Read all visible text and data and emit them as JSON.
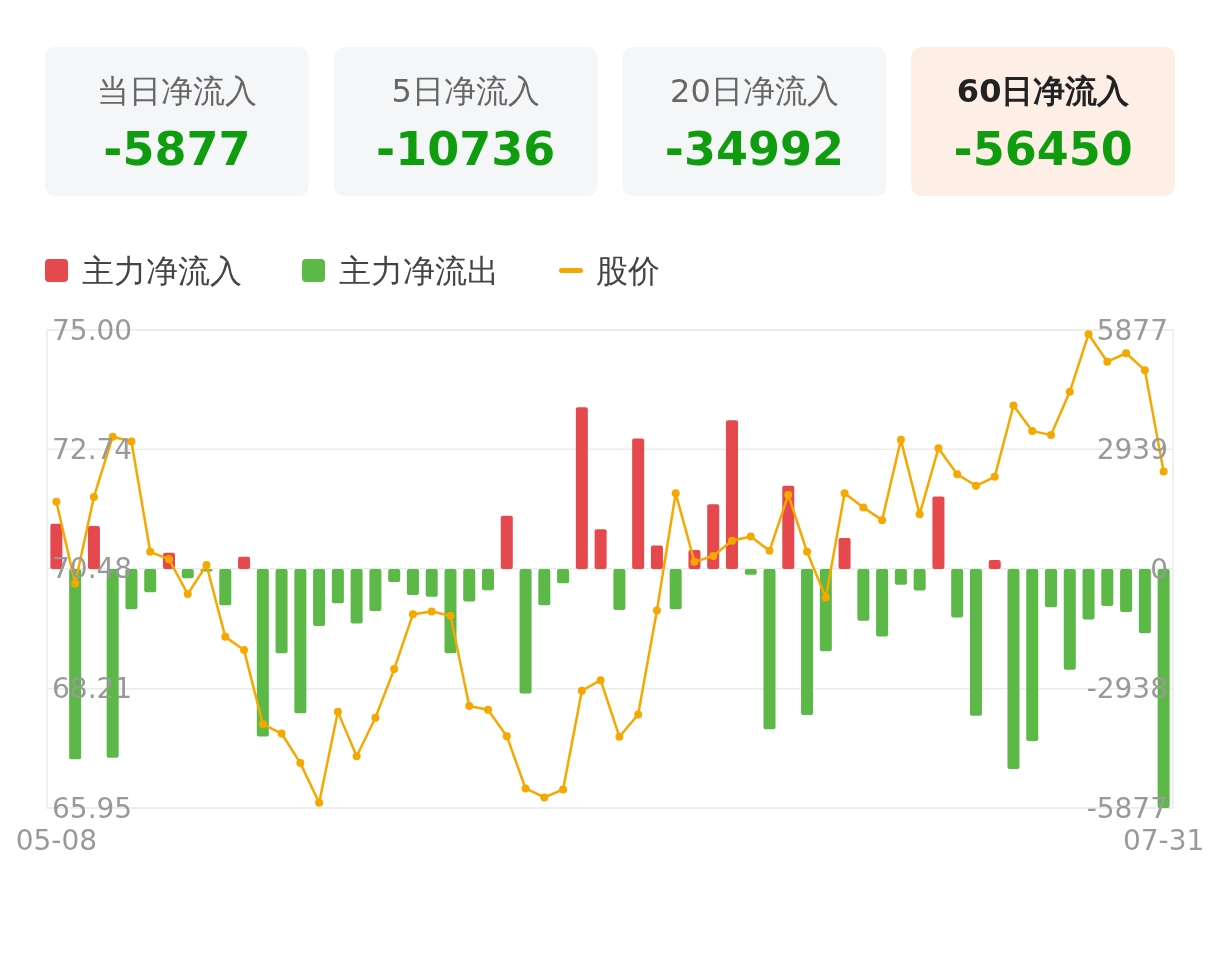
{
  "chart_data": [
    {
      "type": "other",
      "categories": [
        "当日净流入",
        "5日净流入",
        "20日净流入",
        "60日净流入"
      ],
      "values": [
        -5877,
        -10736,
        -34992,
        -56450
      ],
      "colors": [
        "#f5f6f8",
        "#f5f6f8",
        "#f5f6f8",
        "#fdeee6"
      ],
      "data_labels": true
    },
    {
      "type": "bar",
      "legend": "top",
      "grid": "y",
      "marker": "circle",
      "categories": [
        "05-08",
        null,
        null,
        null,
        null,
        null,
        null,
        null,
        null,
        null,
        null,
        null,
        null,
        null,
        null,
        null,
        null,
        null,
        null,
        null,
        null,
        null,
        null,
        null,
        null,
        null,
        null,
        null,
        null,
        null,
        null,
        null,
        null,
        null,
        null,
        null,
        null,
        null,
        null,
        null,
        null,
        null,
        null,
        null,
        null,
        null,
        null,
        null,
        null,
        null,
        null,
        null,
        null,
        null,
        null,
        null,
        null,
        null,
        null,
        "07-31"
      ],
      "ylim": [
        65.95,
        75
      ],
      "yticks": [
        {
          "value": 75,
          "label": "75.00"
        },
        72.74,
        70.48,
        68.21,
        65.95
      ],
      "y2lim": [
        -5877,
        5877
      ],
      "y2ticks": [
        5877,
        2939,
        0,
        -2938,
        -5877
      ],
      "series": [
        {
          "name": "主力净流入",
          "type": "bar",
          "axis": "y2",
          "color": "#e5484d",
          "values": [
            1110,
            null,
            1060,
            null,
            null,
            null,
            400,
            null,
            null,
            null,
            300,
            null,
            null,
            null,
            null,
            null,
            null,
            null,
            null,
            null,
            null,
            null,
            null,
            null,
            1310,
            null,
            null,
            null,
            3980,
            980,
            null,
            3210,
            580,
            null,
            470,
            1590,
            3660,
            null,
            null,
            2050,
            null,
            null,
            760,
            null,
            null,
            null,
            null,
            1780,
            null,
            null,
            220,
            null,
            null,
            null,
            null,
            null,
            null,
            null,
            null,
            null
          ]
        },
        {
          "name": "主力净流出",
          "type": "bar",
          "axis": "y2",
          "color": "#5cb947",
          "values": [
            null,
            -4680,
            null,
            -4640,
            -990,
            -570,
            null,
            -230,
            -60,
            -890,
            null,
            -4120,
            -2070,
            -3550,
            -1400,
            -840,
            -1340,
            -1030,
            -320,
            -640,
            -680,
            -2070,
            -800,
            -520,
            null,
            -3060,
            -890,
            -350,
            null,
            null,
            -1010,
            null,
            null,
            -990,
            null,
            null,
            null,
            -140,
            -3940,
            null,
            -3590,
            -2020,
            null,
            -1270,
            -1660,
            -390,
            -530,
            null,
            -1190,
            -3610,
            null,
            -4920,
            -4230,
            -940,
            -2480,
            -1240,
            -910,
            -1060,
            -1580,
            -5877
          ]
        },
        {
          "name": "股价",
          "type": "line",
          "axis": "y",
          "color": "#f5a800",
          "values": [
            71.75,
            70.2,
            71.84,
            72.98,
            72.89,
            70.8,
            70.66,
            70.0,
            70.55,
            69.19,
            68.94,
            67.54,
            67.36,
            66.8,
            66.05,
            67.77,
            66.93,
            67.66,
            68.58,
            69.62,
            69.67,
            69.59,
            67.88,
            67.81,
            67.31,
            66.32,
            66.15,
            66.3,
            68.17,
            68.37,
            67.3,
            67.72,
            69.69,
            71.91,
            70.61,
            70.72,
            71.01,
            71.09,
            70.82,
            71.88,
            70.8,
            69.93,
            71.91,
            71.64,
            71.4,
            72.92,
            71.51,
            72.76,
            72.27,
            72.05,
            72.22,
            73.57,
            73.09,
            73.01,
            73.83,
            74.92,
            74.4,
            74.56,
            74.24,
            72.32
          ]
        }
      ]
    }
  ]
}
